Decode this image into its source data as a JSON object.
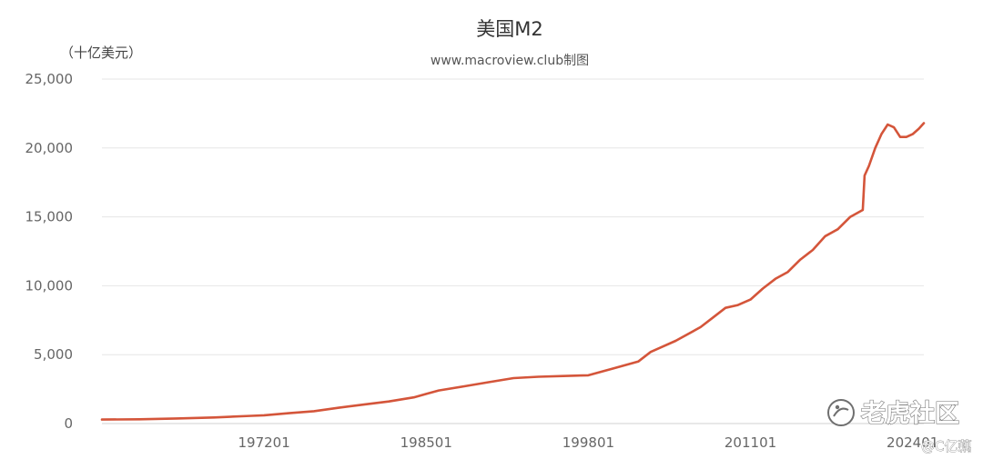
{
  "watermark": {
    "brand": "老虎社区",
    "handle": "@C亿藕"
  },
  "chart_data": {
    "type": "line",
    "title": "美国M2",
    "subtitle": "www.macroview.club制图",
    "unit_label": "（十亿美元）",
    "line_color": "#d4553a",
    "grid": true,
    "ylim": [
      0,
      25000
    ],
    "y_ticks": [
      "0",
      "5,000",
      "10,000",
      "15,000",
      "20,000",
      "25,000"
    ],
    "x_ticks": [
      "197201",
      "198501",
      "199801",
      "201101",
      "202401"
    ],
    "series": [
      {
        "points": [
          [
            1959.0,
            290
          ],
          [
            1962.0,
            310
          ],
          [
            1965.0,
            370
          ],
          [
            1968.0,
            440
          ],
          [
            1971.0,
            560
          ],
          [
            1972.0,
            600
          ],
          [
            1974.0,
            750
          ],
          [
            1976.0,
            900
          ],
          [
            1978.0,
            1150
          ],
          [
            1980.0,
            1380
          ],
          [
            1982.0,
            1600
          ],
          [
            1984.0,
            1900
          ],
          [
            1985.0,
            2150
          ],
          [
            1986.0,
            2400
          ],
          [
            1988.0,
            2700
          ],
          [
            1990.0,
            3000
          ],
          [
            1992.0,
            3300
          ],
          [
            1994.0,
            3400
          ],
          [
            1996.0,
            3450
          ],
          [
            1998.0,
            3500
          ],
          [
            2000.0,
            4000
          ],
          [
            2002.0,
            4500
          ],
          [
            2003.0,
            5200
          ],
          [
            2005.0,
            6000
          ],
          [
            2007.0,
            7000
          ],
          [
            2008.0,
            7700
          ],
          [
            2009.0,
            8400
          ],
          [
            2010.0,
            8600
          ],
          [
            2011.0,
            9000
          ],
          [
            2012.0,
            9800
          ],
          [
            2013.0,
            10500
          ],
          [
            2014.0,
            11000
          ],
          [
            2015.0,
            11900
          ],
          [
            2016.0,
            12600
          ],
          [
            2017.0,
            13600
          ],
          [
            2018.0,
            14100
          ],
          [
            2019.0,
            15000
          ],
          [
            2020.0,
            15500
          ],
          [
            2020.15,
            18000
          ],
          [
            2020.5,
            18700
          ],
          [
            2021.0,
            20000
          ],
          [
            2021.5,
            21000
          ],
          [
            2022.0,
            21700
          ],
          [
            2022.5,
            21500
          ],
          [
            2023.0,
            20800
          ],
          [
            2023.5,
            20800
          ],
          [
            2024.0,
            21000
          ],
          [
            2024.5,
            21400
          ],
          [
            2024.9,
            21800
          ]
        ]
      }
    ]
  }
}
